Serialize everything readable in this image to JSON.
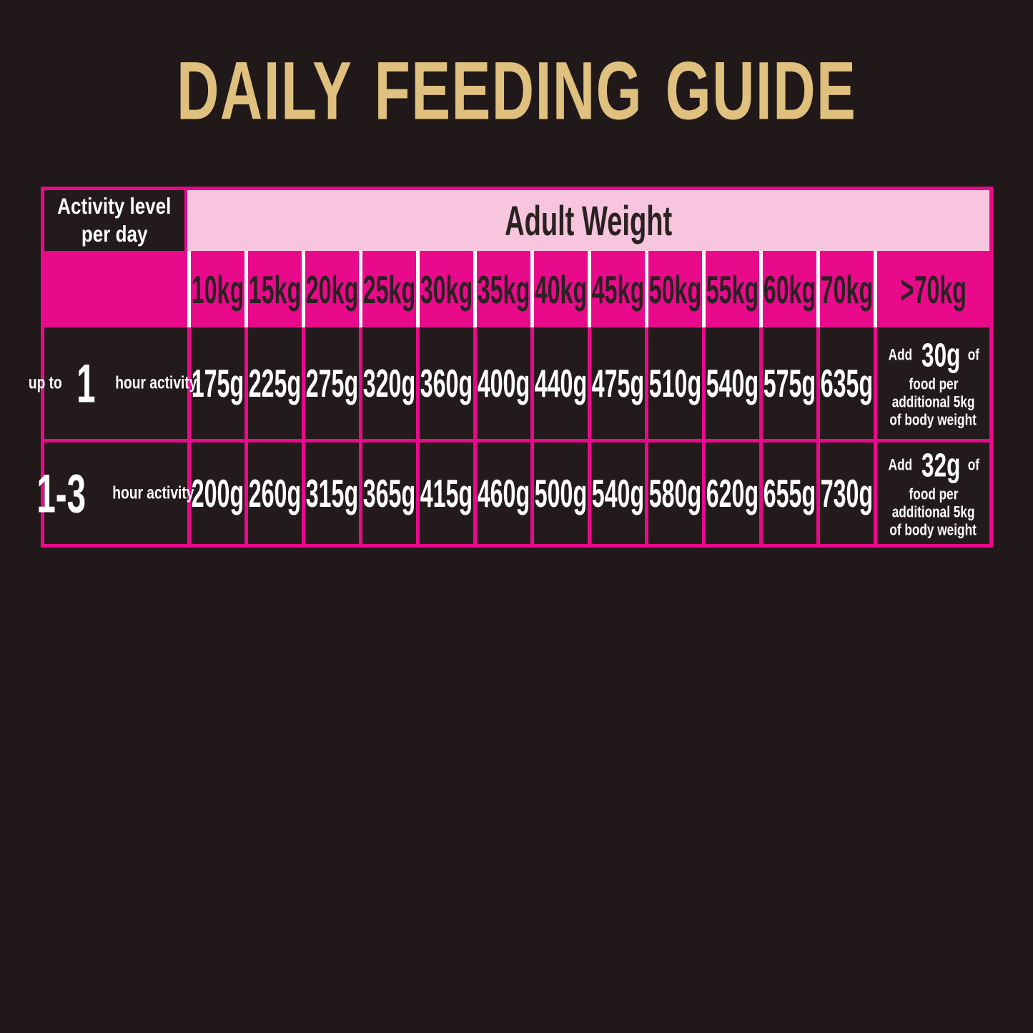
{
  "title": "DAILY FEEDING GUIDE",
  "colors": {
    "background": "#211919",
    "magenta": "#E90A8C",
    "light_pink": "#F7C6DE",
    "gold_title": "#DFC07E",
    "text_light": "#FFFFFF",
    "text_dark": "#2A2121"
  },
  "table": {
    "corner": {
      "line1": "Activity level",
      "line2": "per day"
    },
    "adult_weight_header": "Adult Weight",
    "weights": [
      "10kg",
      "15kg",
      "20kg",
      "25kg",
      "30kg",
      "35kg",
      "40kg",
      "45kg",
      "50kg",
      "55kg",
      "60kg",
      "70kg",
      ">70kg"
    ],
    "rows": [
      {
        "prefix": "up to",
        "big": "1",
        "suffix": "hour activity",
        "values": [
          "175g",
          "225g",
          "275g",
          "320g",
          "360g",
          "400g",
          "440g",
          "475g",
          "510g",
          "540g",
          "575g",
          "635g"
        ],
        "note": {
          "pre": "Add",
          "amount": "30g",
          "post": "of",
          "line2": "food per",
          "line3": "additional 5kg",
          "line4": "of body weight"
        }
      },
      {
        "big": "1-3",
        "suffix": "hour activity",
        "values": [
          "200g",
          "260g",
          "315g",
          "365g",
          "415g",
          "460g",
          "500g",
          "540g",
          "580g",
          "620g",
          "655g",
          "730g"
        ],
        "note": {
          "pre": "Add",
          "amount": "32g",
          "post": "of",
          "line2": "food per",
          "line3": "additional 5kg",
          "line4": "of body weight"
        }
      }
    ]
  }
}
